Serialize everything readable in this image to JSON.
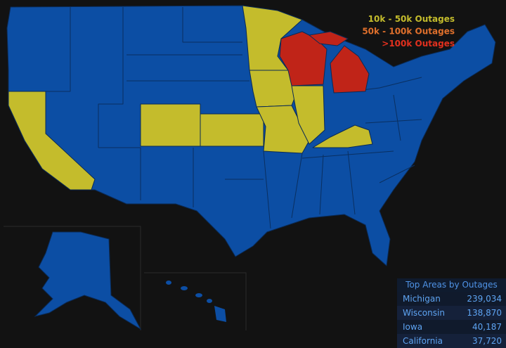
{
  "legend": [
    {
      "label": "10k - 50k Outages",
      "color": "#c4bc2c"
    },
    {
      "label": "50k - 100k Outages",
      "color": "#e0702c"
    },
    {
      "label": ">100k Outages",
      "color": "#e2301e"
    }
  ],
  "table": {
    "title": "Top Areas by Outages",
    "rows": [
      [
        "Michigan",
        "239,034"
      ],
      [
        "Wisconsin",
        "138,870"
      ],
      [
        "Iowa",
        "40,187"
      ],
      [
        "California",
        "37,720"
      ]
    ]
  }
}
